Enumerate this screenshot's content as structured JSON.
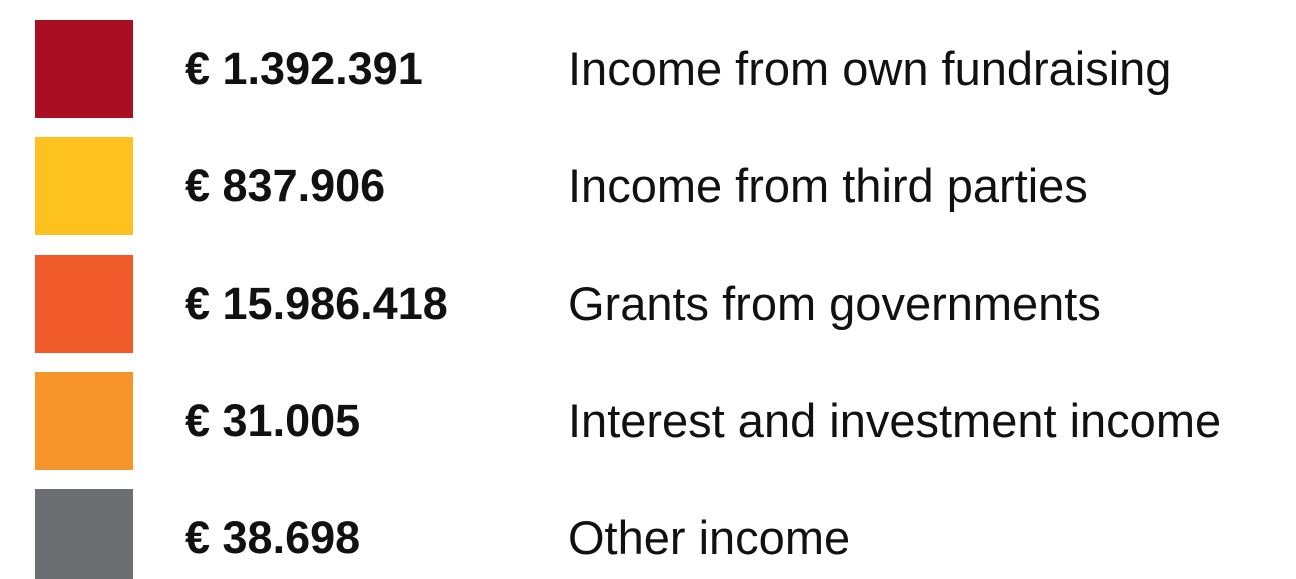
{
  "items": [
    {
      "color": "#a90e23",
      "amount": "€ 1.392.391",
      "label": "Income from own fundraising"
    },
    {
      "color": "#fdc220",
      "amount": "€ 837.906",
      "label": "Income from third parties"
    },
    {
      "color": "#f15a2b",
      "amount": "€ 15.986.418",
      "label": "Grants from governments"
    },
    {
      "color": "#f7952a",
      "amount": "€ 31.005",
      "label": "Interest and investment income"
    },
    {
      "color": "#6d6e71",
      "amount": "€ 38.698",
      "label": "Other income"
    }
  ]
}
